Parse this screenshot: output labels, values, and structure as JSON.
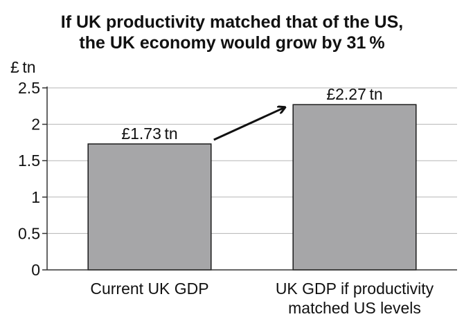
{
  "chart_data": {
    "type": "bar",
    "title_lines": [
      "If UK productivity matched that of the US,",
      "the UK economy would grow by 31 %"
    ],
    "ylabel": "£ tn",
    "categories": [
      [
        "Current UK GDP"
      ],
      [
        "UK GDP if productivity",
        "matched US levels"
      ]
    ],
    "values": [
      1.73,
      2.27
    ],
    "data_labels": [
      "£1.73 tn",
      "£2.27 tn"
    ],
    "ylim": [
      0,
      2.5
    ],
    "yticks": [
      0,
      0.5,
      1,
      1.5,
      2,
      2.5
    ],
    "ytick_labels": [
      "0",
      "0.5",
      "1",
      "1.5",
      "2",
      "2.5"
    ],
    "grid": true,
    "annotation": "arrow from first bar to second bar",
    "colors": {
      "bar_fill": "#a6a6a8",
      "bar_stroke": "#1a1a1a",
      "grid": "#b5b5b5",
      "axis": "#333333"
    }
  }
}
